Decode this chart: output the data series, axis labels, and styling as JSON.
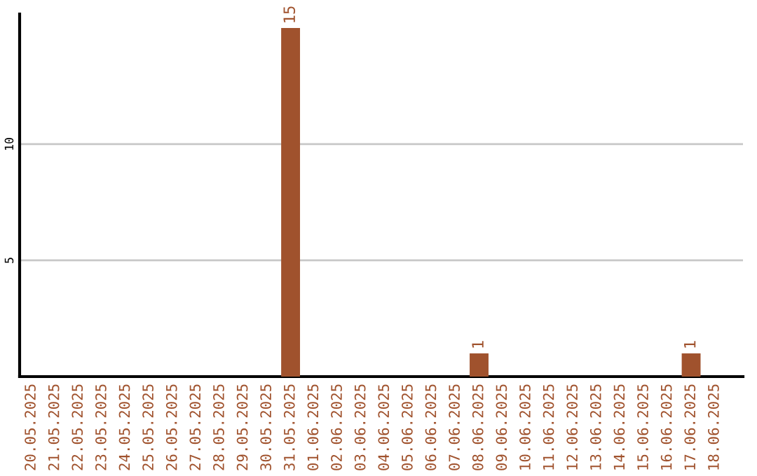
{
  "chart_data": {
    "type": "bar",
    "categories": [
      "20.05.2025",
      "21.05.2025",
      "22.05.2025",
      "23.05.2025",
      "24.05.2025",
      "25.05.2025",
      "26.05.2025",
      "27.05.2025",
      "28.05.2025",
      "29.05.2025",
      "30.05.2025",
      "31.05.2025",
      "01.06.2025",
      "02.06.2025",
      "03.06.2025",
      "04.06.2025",
      "05.06.2025",
      "06.06.2025",
      "07.06.2025",
      "08.06.2025",
      "09.06.2025",
      "10.06.2025",
      "11.06.2025",
      "12.06.2025",
      "13.06.2025",
      "14.06.2025",
      "15.06.2025",
      "16.06.2025",
      "17.06.2025",
      "18.06.2025"
    ],
    "values": [
      0,
      0,
      0,
      0,
      0,
      0,
      0,
      0,
      0,
      0,
      0,
      15,
      0,
      0,
      0,
      0,
      0,
      0,
      0,
      1,
      0,
      0,
      0,
      0,
      0,
      0,
      0,
      0,
      1,
      0
    ],
    "value_labels": [
      null,
      null,
      null,
      null,
      null,
      null,
      null,
      null,
      null,
      null,
      null,
      "15",
      null,
      null,
      null,
      null,
      null,
      null,
      null,
      "1",
      null,
      null,
      null,
      null,
      null,
      null,
      null,
      null,
      "1",
      null
    ],
    "color": "#a0522d",
    "ylim": [
      0,
      15.6
    ],
    "yticks": [
      5,
      10
    ],
    "grid": "y"
  }
}
